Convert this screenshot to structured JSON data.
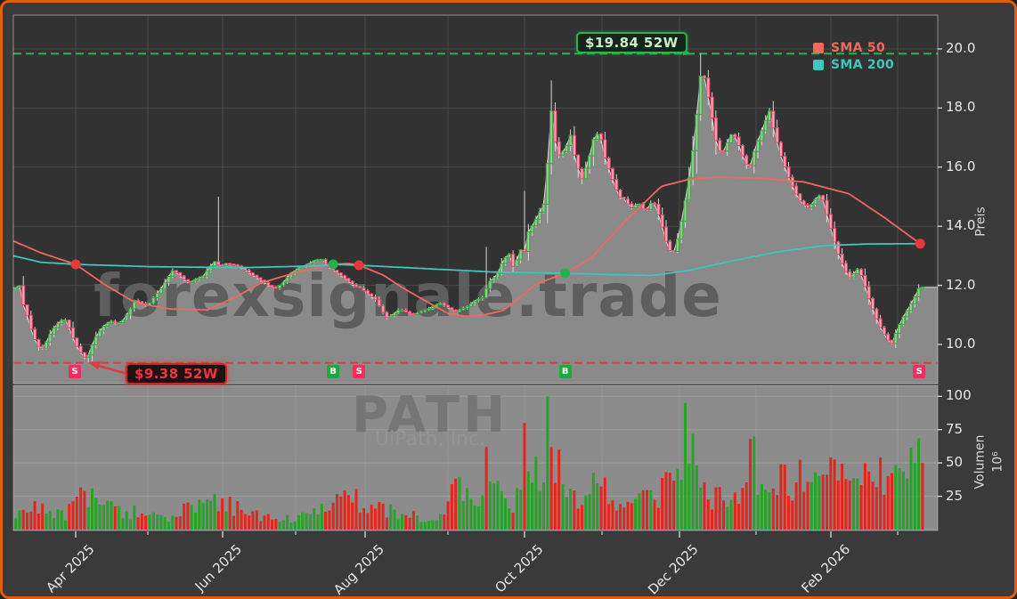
{
  "chart_data": {
    "type": "candlestick",
    "site_watermark": "forexsignale.trade",
    "symbol_watermark": {
      "ticker": "PATH",
      "company": "UiPath, Inc."
    },
    "price_axis": {
      "label": "Preis",
      "ticks": [
        10.0,
        12.0,
        14.0,
        16.0,
        18.0,
        20.0
      ],
      "range": [
        8.6,
        21.1
      ]
    },
    "volume_axis": {
      "label": "Volumen",
      "unit": "10⁶",
      "ticks": [
        25,
        50,
        75,
        100
      ],
      "range": [
        0,
        108
      ]
    },
    "x_axis": {
      "labeled_ticks": [
        {
          "label": "Apr 2025",
          "f": 0.0674
        },
        {
          "label": "Jun 2025",
          "f": 0.2264
        },
        {
          "label": "Aug 2025",
          "f": 0.3805
        },
        {
          "label": "Oct 2025",
          "f": 0.553
        },
        {
          "label": "Dec 2025",
          "f": 0.7206
        },
        {
          "label": "Feb 2026",
          "f": 0.8844
        }
      ],
      "minor_ticks_f": [
        0.1455,
        0.3054,
        0.4701,
        0.6368,
        0.8035,
        0.9567
      ]
    },
    "legend": [
      {
        "label": "SMA 50",
        "color": "#ef6a5a"
      },
      {
        "label": "SMA 200",
        "color": "#3fc6c0"
      }
    ],
    "annotations": {
      "high_52w": {
        "label": "$19.84 52W",
        "price": 19.84,
        "peak_f": 0.732
      },
      "low_52w": {
        "label": "$9.38 52W",
        "price": 9.38,
        "trough_f": 0.0795
      }
    },
    "signal_markers": [
      {
        "type": "S",
        "f": 0.0665
      },
      {
        "type": "B",
        "f": 0.346
      },
      {
        "type": "S",
        "f": 0.374
      },
      {
        "type": "B",
        "f": 0.597
      },
      {
        "type": "S",
        "f": 0.98
      }
    ],
    "sma_cross_dots": [
      {
        "f": 0.0674,
        "price": 12.71,
        "color": "#e5383b"
      },
      {
        "f": 0.346,
        "price": 12.71,
        "color": "#22b14c"
      },
      {
        "f": 0.374,
        "price": 12.68,
        "color": "#e5383b"
      },
      {
        "f": 0.597,
        "price": 12.41,
        "color": "#22b14c"
      },
      {
        "f": 0.981,
        "price": 13.41,
        "color": "#e5383b"
      }
    ],
    "series": {
      "close_anchors": [
        [
          0.002,
          11.9
        ],
        [
          0.006,
          12.1
        ],
        [
          0.01,
          11.4
        ],
        [
          0.014,
          11.1
        ],
        [
          0.018,
          10.6
        ],
        [
          0.024,
          10.1
        ],
        [
          0.03,
          9.8
        ],
        [
          0.036,
          10.1
        ],
        [
          0.042,
          10.5
        ],
        [
          0.048,
          10.7
        ],
        [
          0.055,
          10.9
        ],
        [
          0.06,
          10.6
        ],
        [
          0.066,
          10.1
        ],
        [
          0.071,
          9.8
        ],
        [
          0.076,
          9.6
        ],
        [
          0.0795,
          9.5
        ],
        [
          0.084,
          9.9
        ],
        [
          0.09,
          10.3
        ],
        [
          0.097,
          10.6
        ],
        [
          0.105,
          10.8
        ],
        [
          0.112,
          10.7
        ],
        [
          0.118,
          10.8
        ],
        [
          0.125,
          11.1
        ],
        [
          0.131,
          11.5
        ],
        [
          0.138,
          11.4
        ],
        [
          0.145,
          11.3
        ],
        [
          0.152,
          11.6
        ],
        [
          0.16,
          11.9
        ],
        [
          0.166,
          12.2
        ],
        [
          0.172,
          12.5
        ],
        [
          0.178,
          12.4
        ],
        [
          0.184,
          12.2
        ],
        [
          0.19,
          12.1
        ],
        [
          0.197,
          12.2
        ],
        [
          0.205,
          12.3
        ],
        [
          0.212,
          12.6
        ],
        [
          0.219,
          12.85
        ],
        [
          0.2235,
          12.6
        ],
        [
          0.229,
          12.75
        ],
        [
          0.238,
          12.7
        ],
        [
          0.247,
          12.6
        ],
        [
          0.256,
          12.4
        ],
        [
          0.266,
          12.2
        ],
        [
          0.276,
          12.0
        ],
        [
          0.284,
          11.9
        ],
        [
          0.292,
          12.1
        ],
        [
          0.3,
          12.4
        ],
        [
          0.309,
          12.6
        ],
        [
          0.318,
          12.7
        ],
        [
          0.326,
          12.85
        ],
        [
          0.333,
          12.9
        ],
        [
          0.342,
          12.6
        ],
        [
          0.351,
          12.4
        ],
        [
          0.36,
          12.2
        ],
        [
          0.368,
          12.0
        ],
        [
          0.376,
          11.9
        ],
        [
          0.384,
          11.7
        ],
        [
          0.392,
          11.5
        ],
        [
          0.398,
          11.2
        ],
        [
          0.403,
          10.9
        ],
        [
          0.41,
          11.0
        ],
        [
          0.418,
          11.2
        ],
        [
          0.425,
          11.1
        ],
        [
          0.432,
          11.0
        ],
        [
          0.44,
          11.1
        ],
        [
          0.448,
          11.2
        ],
        [
          0.455,
          11.3
        ],
        [
          0.462,
          11.4
        ],
        [
          0.47,
          11.25
        ],
        [
          0.478,
          11.1
        ],
        [
          0.485,
          11.2
        ],
        [
          0.492,
          11.3
        ],
        [
          0.5,
          11.5
        ],
        [
          0.509,
          11.6
        ],
        [
          0.5135,
          12.1
        ],
        [
          0.518,
          12.2
        ],
        [
          0.524,
          12.4
        ],
        [
          0.529,
          12.8
        ],
        [
          0.536,
          13.1
        ],
        [
          0.542,
          12.5
        ],
        [
          0.548,
          13.3
        ],
        [
          0.5515,
          12.9
        ],
        [
          0.557,
          13.8
        ],
        [
          0.563,
          14.1
        ],
        [
          0.57,
          14.5
        ],
        [
          0.576,
          14.9
        ],
        [
          0.581,
          18.2
        ],
        [
          0.585,
          17.0
        ],
        [
          0.59,
          16.4
        ],
        [
          0.597,
          16.6
        ],
        [
          0.603,
          17.1
        ],
        [
          0.608,
          16.2
        ],
        [
          0.615,
          15.6
        ],
        [
          0.622,
          16.2
        ],
        [
          0.628,
          17.0
        ],
        [
          0.634,
          17.2
        ],
        [
          0.64,
          16.3
        ],
        [
          0.648,
          15.6
        ],
        [
          0.655,
          15.0
        ],
        [
          0.662,
          14.9
        ],
        [
          0.668,
          14.6
        ],
        [
          0.676,
          14.8
        ],
        [
          0.684,
          14.5
        ],
        [
          0.692,
          14.9
        ],
        [
          0.7,
          14.2
        ],
        [
          0.707,
          13.4
        ],
        [
          0.713,
          13.0
        ],
        [
          0.72,
          13.7
        ],
        [
          0.727,
          14.9
        ],
        [
          0.733,
          16.0
        ],
        [
          0.738,
          17.3
        ],
        [
          0.742,
          18.8
        ],
        [
          0.745,
          19.4
        ],
        [
          0.749,
          18.8
        ],
        [
          0.754,
          18.0
        ],
        [
          0.76,
          16.9
        ],
        [
          0.766,
          16.4
        ],
        [
          0.772,
          16.8
        ],
        [
          0.778,
          17.2
        ],
        [
          0.784,
          16.8
        ],
        [
          0.79,
          16.3
        ],
        [
          0.796,
          15.9
        ],
        [
          0.802,
          16.6
        ],
        [
          0.808,
          17.1
        ],
        [
          0.814,
          17.6
        ],
        [
          0.818,
          17.9
        ],
        [
          0.823,
          17.2
        ],
        [
          0.83,
          16.4
        ],
        [
          0.838,
          15.7
        ],
        [
          0.845,
          15.2
        ],
        [
          0.852,
          14.8
        ],
        [
          0.86,
          14.6
        ],
        [
          0.867,
          14.9
        ],
        [
          0.874,
          15.1
        ],
        [
          0.88,
          14.4
        ],
        [
          0.887,
          13.6
        ],
        [
          0.893,
          13.0
        ],
        [
          0.9,
          12.5
        ],
        [
          0.906,
          12.2
        ],
        [
          0.912,
          12.6
        ],
        [
          0.918,
          12.3
        ],
        [
          0.925,
          11.6
        ],
        [
          0.932,
          11.0
        ],
        [
          0.939,
          10.5
        ],
        [
          0.945,
          10.2
        ],
        [
          0.95,
          10.0
        ],
        [
          0.956,
          10.5
        ],
        [
          0.962,
          10.9
        ],
        [
          0.968,
          11.2
        ],
        [
          0.975,
          11.6
        ],
        [
          0.981,
          12.0
        ],
        [
          0.985,
          11.9
        ]
      ],
      "wick_events": [
        {
          "f": 0.0795,
          "low": 9.38
        },
        {
          "f": 0.2235,
          "high": 15.0
        },
        {
          "f": 0.5135,
          "high": 13.3
        },
        {
          "f": 0.5515,
          "high": 15.2
        },
        {
          "f": 0.745,
          "high": 19.84
        }
      ],
      "sma50_anchors": [
        [
          0,
          13.5
        ],
        [
          0.03,
          13.1
        ],
        [
          0.0674,
          12.71
        ],
        [
          0.1,
          12.0
        ],
        [
          0.133,
          11.4
        ],
        [
          0.17,
          11.2
        ],
        [
          0.21,
          11.17
        ],
        [
          0.24,
          11.6
        ],
        [
          0.268,
          12.08
        ],
        [
          0.306,
          12.44
        ],
        [
          0.346,
          12.71
        ],
        [
          0.362,
          12.74
        ],
        [
          0.374,
          12.68
        ],
        [
          0.4,
          12.35
        ],
        [
          0.422,
          11.9
        ],
        [
          0.45,
          11.4
        ],
        [
          0.47,
          11.05
        ],
        [
          0.49,
          10.95
        ],
        [
          0.509,
          11.0
        ],
        [
          0.53,
          11.15
        ],
        [
          0.55,
          11.63
        ],
        [
          0.566,
          12.05
        ],
        [
          0.597,
          12.41
        ],
        [
          0.624,
          12.9
        ],
        [
          0.663,
          14.2
        ],
        [
          0.701,
          15.35
        ],
        [
          0.73,
          15.58
        ],
        [
          0.759,
          15.66
        ],
        [
          0.807,
          15.63
        ],
        [
          0.855,
          15.5
        ],
        [
          0.904,
          15.1
        ],
        [
          0.942,
          14.3
        ],
        [
          0.981,
          13.41
        ]
      ],
      "sma200_anchors": [
        [
          0,
          13.0
        ],
        [
          0.03,
          12.78
        ],
        [
          0.0674,
          12.71
        ],
        [
          0.15,
          12.63
        ],
        [
          0.25,
          12.6
        ],
        [
          0.33,
          12.66
        ],
        [
          0.346,
          12.71
        ],
        [
          0.374,
          12.68
        ],
        [
          0.45,
          12.56
        ],
        [
          0.52,
          12.45
        ],
        [
          0.597,
          12.41
        ],
        [
          0.65,
          12.36
        ],
        [
          0.69,
          12.33
        ],
        [
          0.73,
          12.5
        ],
        [
          0.778,
          12.83
        ],
        [
          0.826,
          13.13
        ],
        [
          0.875,
          13.34
        ],
        [
          0.923,
          13.4
        ],
        [
          0.979,
          13.41
        ]
      ],
      "volume_anchors": [
        [
          0.002,
          8
        ],
        [
          0.012,
          14
        ],
        [
          0.03,
          18
        ],
        [
          0.045,
          12
        ],
        [
          0.055,
          10
        ],
        [
          0.066,
          20
        ],
        [
          0.075,
          24
        ],
        [
          0.085,
          22
        ],
        [
          0.095,
          26
        ],
        [
          0.105,
          16
        ],
        [
          0.118,
          12
        ],
        [
          0.131,
          14
        ],
        [
          0.15,
          10
        ],
        [
          0.165,
          9
        ],
        [
          0.18,
          12
        ],
        [
          0.195,
          22
        ],
        [
          0.21,
          26
        ],
        [
          0.2235,
          24
        ],
        [
          0.24,
          18
        ],
        [
          0.255,
          14
        ],
        [
          0.27,
          10
        ],
        [
          0.285,
          8
        ],
        [
          0.3,
          9
        ],
        [
          0.32,
          12
        ],
        [
          0.34,
          16
        ],
        [
          0.355,
          26
        ],
        [
          0.37,
          22
        ],
        [
          0.385,
          20
        ],
        [
          0.4,
          16
        ],
        [
          0.415,
          12
        ],
        [
          0.43,
          11
        ],
        [
          0.445,
          9
        ],
        [
          0.46,
          9
        ],
        [
          0.475,
          32
        ],
        [
          0.49,
          28
        ],
        [
          0.505,
          16
        ],
        [
          0.5135,
          60
        ],
        [
          0.522,
          28
        ],
        [
          0.535,
          20
        ],
        [
          0.545,
          25
        ],
        [
          0.5515,
          70
        ],
        [
          0.56,
          24
        ],
        [
          0.567,
          52
        ],
        [
          0.572,
          18
        ],
        [
          0.578,
          95
        ],
        [
          0.5835,
          60
        ],
        [
          0.592,
          40
        ],
        [
          0.6,
          30
        ],
        [
          0.61,
          26
        ],
        [
          0.62,
          32
        ],
        [
          0.628,
          38
        ],
        [
          0.64,
          28
        ],
        [
          0.655,
          20
        ],
        [
          0.67,
          16
        ],
        [
          0.685,
          24
        ],
        [
          0.7,
          30
        ],
        [
          0.713,
          34
        ],
        [
          0.722,
          40
        ],
        [
          0.728,
          92
        ],
        [
          0.733,
          60
        ],
        [
          0.74,
          34
        ],
        [
          0.75,
          28
        ],
        [
          0.762,
          24
        ],
        [
          0.775,
          22
        ],
        [
          0.79,
          28
        ],
        [
          0.798,
          66
        ],
        [
          0.806,
          44
        ],
        [
          0.815,
          28
        ],
        [
          0.824,
          24
        ],
        [
          0.831,
          48
        ],
        [
          0.84,
          34
        ],
        [
          0.85,
          38
        ],
        [
          0.86,
          34
        ],
        [
          0.873,
          42
        ],
        [
          0.882,
          38
        ],
        [
          0.89,
          42
        ],
        [
          0.9,
          40
        ],
        [
          0.91,
          34
        ],
        [
          0.92,
          38
        ],
        [
          0.93,
          36
        ],
        [
          0.938,
          40
        ],
        [
          0.945,
          44
        ],
        [
          0.952,
          48
        ],
        [
          0.96,
          48
        ],
        [
          0.968,
          44
        ],
        [
          0.976,
          48
        ],
        [
          0.981,
          50
        ],
        [
          0.985,
          50
        ]
      ],
      "volume_spikes": [
        {
          "f": 0.475,
          "v": 34,
          "dir": "down"
        },
        {
          "f": 0.5135,
          "v": 62,
          "dir": "down"
        },
        {
          "f": 0.5515,
          "v": 80,
          "dir": "down"
        },
        {
          "f": 0.567,
          "v": 55,
          "dir": "up"
        },
        {
          "f": 0.578,
          "v": 100,
          "dir": "up"
        },
        {
          "f": 0.5835,
          "v": 62,
          "dir": "down"
        },
        {
          "f": 0.728,
          "v": 95,
          "dir": "up"
        },
        {
          "f": 0.798,
          "v": 68,
          "dir": "down"
        },
        {
          "f": 0.831,
          "v": 49,
          "dir": "down"
        },
        {
          "f": 0.976,
          "v": 50,
          "dir": "up"
        },
        {
          "f": 0.985,
          "v": 50,
          "dir": "down"
        }
      ]
    },
    "colors": {
      "frame_border": "#e65c0f",
      "background": "#3a3a3a",
      "plot_background": "#323232",
      "grid": "#4a4a4a",
      "panel_gray": "#8c8c8c",
      "area_fill": "#8a8a8a",
      "area_edge": "#d9d9d9",
      "candle_up": "#3aa83c",
      "candle_up_fill": "#8fd093",
      "candle_down": "#ef4569",
      "candle_down_fill": "#f5a8bc",
      "wick": "#d8d8d8",
      "sma50": "#ef6a5a",
      "sma200": "#3fc6c0",
      "high_line": "#2bb24c",
      "low_line": "#e23b3b",
      "vol_up": "#27a327",
      "vol_down": "#e3261d",
      "buy_marker": "#1fa83c",
      "sell_marker": "#f0305c",
      "watermark": "#5e5e5e",
      "ticker_watermark": "#767676",
      "company_watermark": "#949494"
    }
  }
}
